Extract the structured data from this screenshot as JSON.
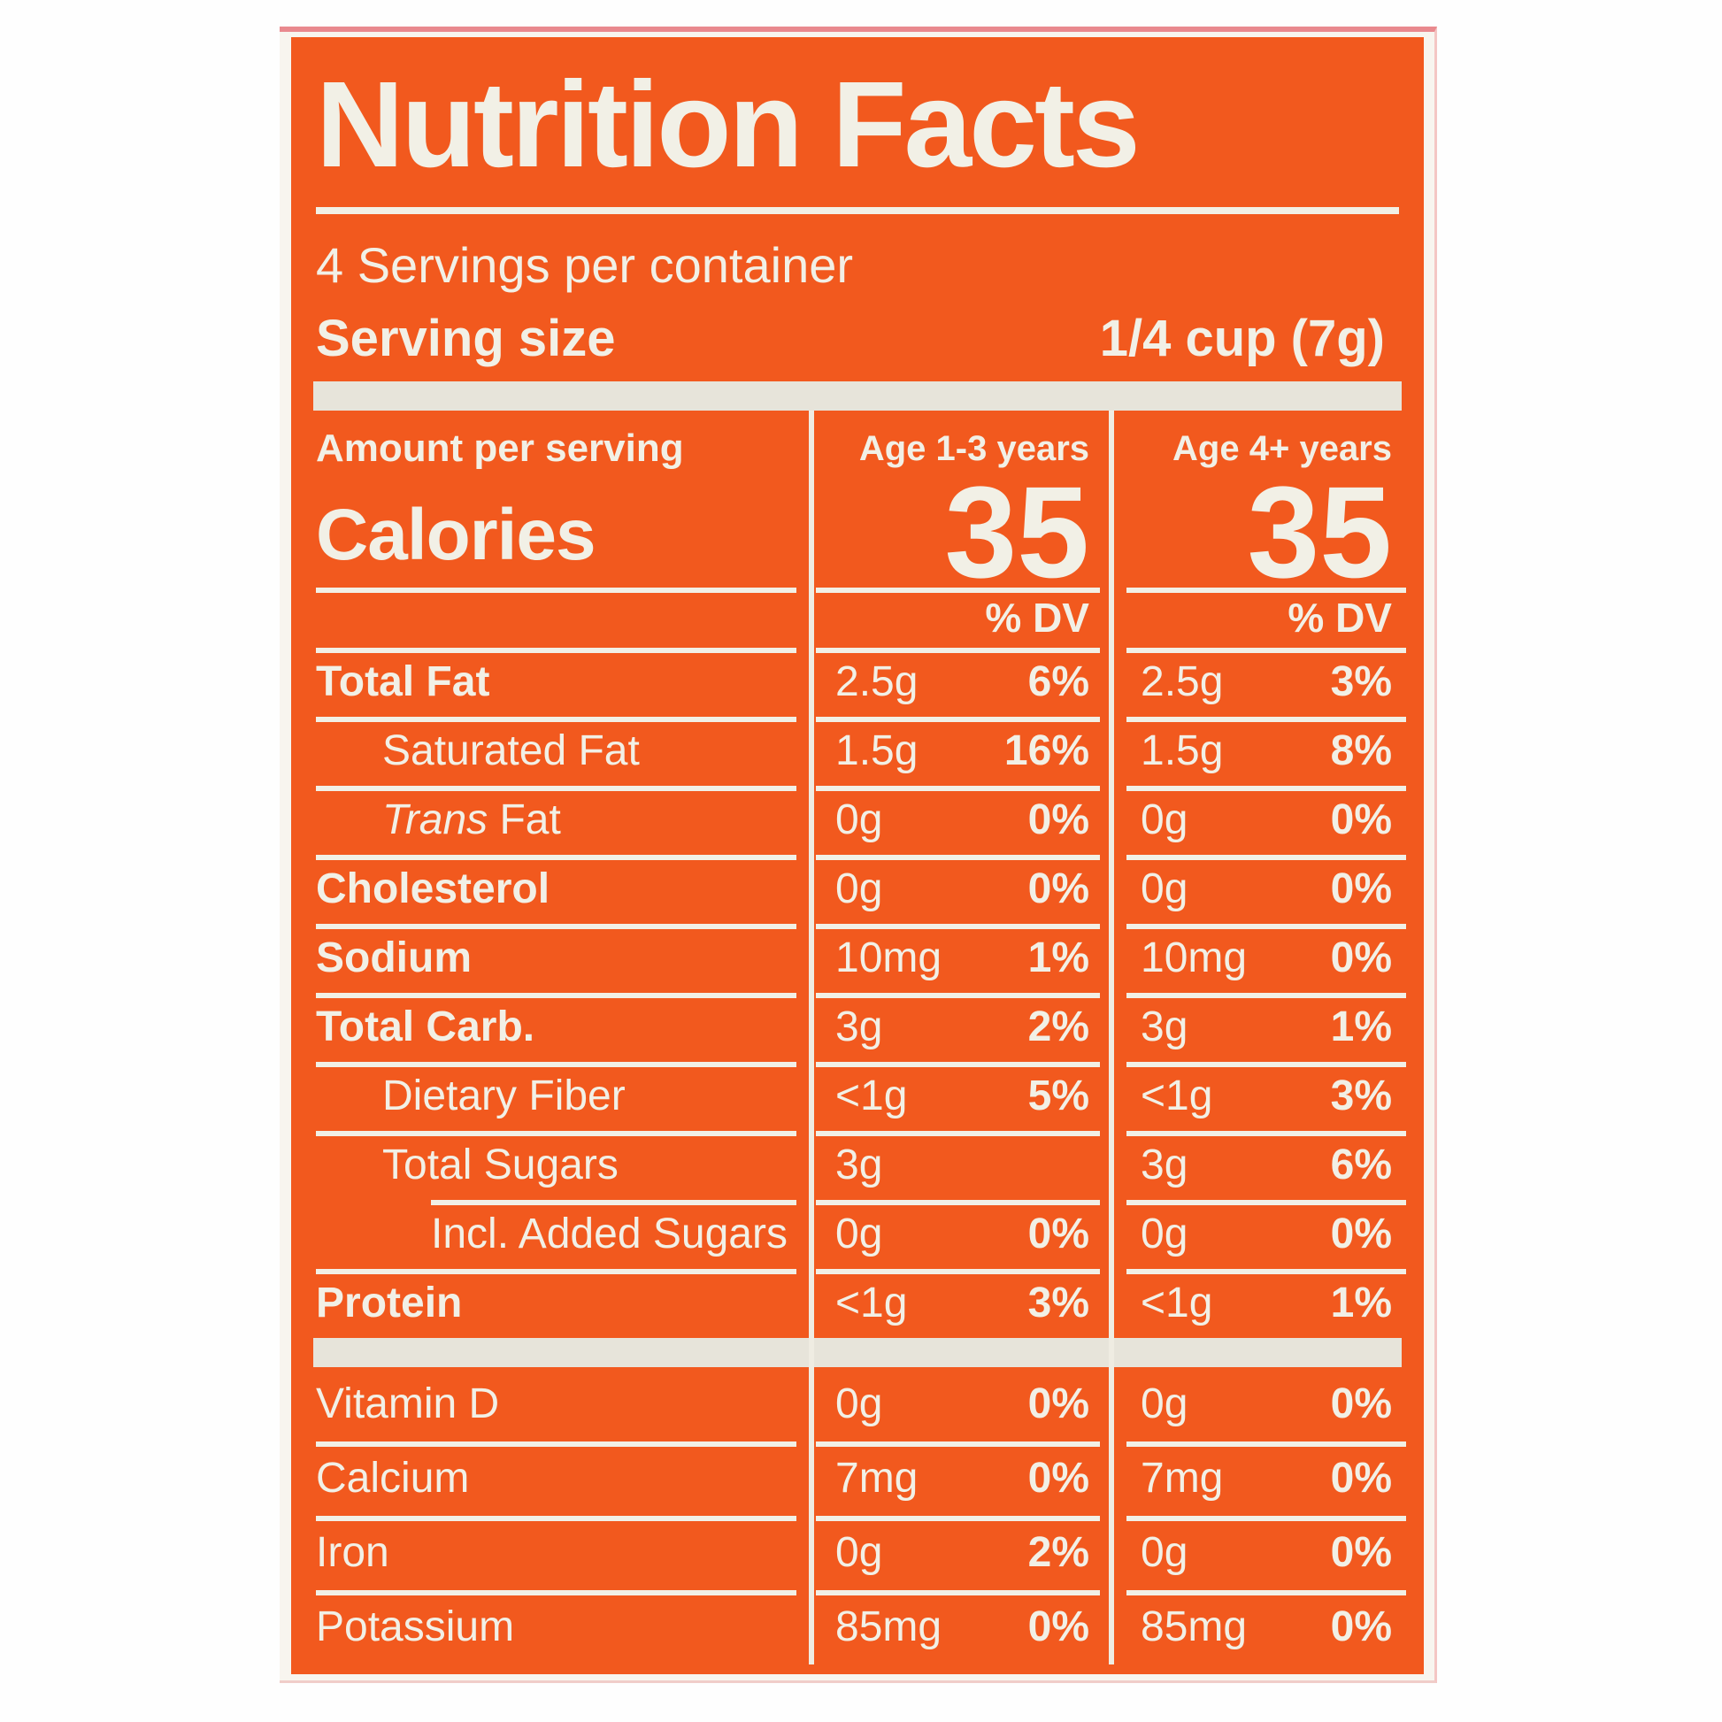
{
  "colors": {
    "panel_orange": "#f2591e",
    "text_offwhite": "#f2f0e6",
    "bar_gray": "#e7e4da",
    "frame_cream": "#f8f5ef",
    "top_edge_pink": "#e9898e"
  },
  "label": {
    "title": "Nutrition Facts",
    "servings_per_container": "4 Servings per container",
    "serving_size": {
      "label": "Serving size",
      "value": "1/4 cup (7g)"
    },
    "amount_per_serving": "Amount per serving",
    "calories_label": "Calories",
    "columns": [
      {
        "header": "Age 1-3 years",
        "calories": "35",
        "dv_header": "% DV"
      },
      {
        "header": "Age 4+ years",
        "calories": "35",
        "dv_header": "% DV"
      }
    ],
    "main_rows": [
      {
        "name": "Total Fat",
        "bold": true,
        "indent": 0,
        "values": [
          [
            "2.5g",
            "6%"
          ],
          [
            "2.5g",
            "3%"
          ]
        ]
      },
      {
        "name": "Saturated Fat",
        "bold": false,
        "indent": 1,
        "values": [
          [
            "1.5g",
            "16%"
          ],
          [
            "1.5g",
            "8%"
          ]
        ]
      },
      {
        "name": "Trans Fat",
        "italic_prefix": "Trans",
        "bold": false,
        "indent": 1,
        "values": [
          [
            "0g",
            "0%"
          ],
          [
            "0g",
            "0%"
          ]
        ]
      },
      {
        "name": "Cholesterol",
        "bold": true,
        "indent": 0,
        "values": [
          [
            "0g",
            "0%"
          ],
          [
            "0g",
            "0%"
          ]
        ]
      },
      {
        "name": "Sodium",
        "bold": true,
        "indent": 0,
        "values": [
          [
            "10mg",
            "1%"
          ],
          [
            "10mg",
            "0%"
          ]
        ]
      },
      {
        "name": "Total Carb.",
        "bold": true,
        "indent": 0,
        "values": [
          [
            "3g",
            "2%"
          ],
          [
            "3g",
            "1%"
          ]
        ]
      },
      {
        "name": "Dietary Fiber",
        "bold": false,
        "indent": 1,
        "values": [
          [
            "<1g",
            "5%"
          ],
          [
            "<1g",
            "3%"
          ]
        ]
      },
      {
        "name": "Total Sugars",
        "bold": false,
        "indent": 1,
        "values": [
          [
            "3g",
            ""
          ],
          [
            "3g",
            "6%"
          ]
        ]
      },
      {
        "name": "Incl. Added Sugars",
        "bold": false,
        "indent": 2,
        "rule_indent": true,
        "values": [
          [
            "0g",
            "0%"
          ],
          [
            "0g",
            "0%"
          ]
        ]
      },
      {
        "name": "Protein",
        "bold": true,
        "indent": 0,
        "values": [
          [
            "<1g",
            "3%"
          ],
          [
            "<1g",
            "1%"
          ]
        ]
      }
    ],
    "mineral_rows": [
      {
        "name": "Vitamin D",
        "bold": false,
        "indent": 0,
        "values": [
          [
            "0g",
            "0%"
          ],
          [
            "0g",
            "0%"
          ]
        ]
      },
      {
        "name": "Calcium",
        "bold": false,
        "indent": 0,
        "values": [
          [
            "7mg",
            "0%"
          ],
          [
            "7mg",
            "0%"
          ]
        ]
      },
      {
        "name": "Iron",
        "bold": false,
        "indent": 0,
        "values": [
          [
            "0g",
            "2%"
          ],
          [
            "0g",
            "0%"
          ]
        ]
      },
      {
        "name": "Potassium",
        "bold": false,
        "indent": 0,
        "values": [
          [
            "85mg",
            "0%"
          ],
          [
            "85mg",
            "0%"
          ]
        ]
      }
    ]
  }
}
